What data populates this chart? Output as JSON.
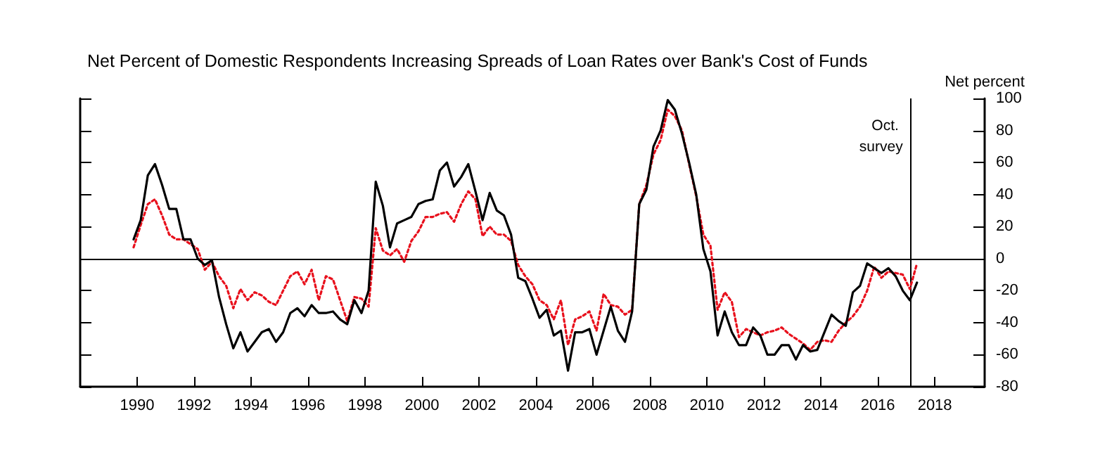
{
  "chart_data": {
    "type": "line",
    "title": "Net Percent of Domestic Respondents Increasing Spreads of Loan Rates over Bank's Cost of Funds",
    "ylabel": "Net percent",
    "x": [
      1990.375,
      1990.625,
      1990.875,
      1991.125,
      1991.375,
      1991.625,
      1991.875,
      1992.125,
      1992.375,
      1992.625,
      1992.875,
      1993.125,
      1993.375,
      1993.625,
      1993.875,
      1994.125,
      1994.375,
      1994.625,
      1994.875,
      1995.125,
      1995.375,
      1995.625,
      1995.875,
      1996.125,
      1996.375,
      1996.625,
      1996.875,
      1997.125,
      1997.375,
      1997.625,
      1997.875,
      1998.125,
      1998.375,
      1998.625,
      1998.875,
      1999.125,
      1999.375,
      1999.625,
      1999.875,
      2000.125,
      2000.375,
      2000.625,
      2000.875,
      2001.125,
      2001.375,
      2001.625,
      2001.875,
      2002.125,
      2002.375,
      2002.625,
      2002.875,
      2003.125,
      2003.375,
      2003.625,
      2003.875,
      2004.125,
      2004.375,
      2004.625,
      2004.875,
      2005.125,
      2005.375,
      2005.625,
      2005.875,
      2006.125,
      2006.375,
      2006.625,
      2006.875,
      2007.125,
      2007.375,
      2007.625,
      2007.875,
      2008.125,
      2008.375,
      2008.625,
      2008.875,
      2009.125,
      2009.375,
      2009.625,
      2009.875,
      2010.125,
      2010.375,
      2010.625,
      2010.875,
      2011.125,
      2011.375,
      2011.625,
      2011.875,
      2012.125,
      2012.375,
      2012.625,
      2012.875,
      2013.125,
      2013.375,
      2013.625,
      2013.875,
      2014.125,
      2014.375,
      2014.625,
      2014.875,
      2015.125,
      2015.375,
      2015.625,
      2015.875,
      2016.125,
      2016.375,
      2016.625,
      2016.875,
      2017.125,
      2017.375,
      2017.625,
      2017.875
    ],
    "series": [
      {
        "color": "#000000",
        "line_style": "solid",
        "values": [
          12,
          24,
          52,
          59,
          46,
          31,
          31,
          12,
          12,
          0,
          -4,
          -1,
          -24,
          -41,
          -56,
          -46,
          -58,
          -52,
          -46,
          -44,
          -52,
          -46,
          -34,
          -31,
          -36,
          -29,
          -34,
          -34,
          -33,
          -38,
          -41,
          -26,
          -34,
          -20,
          48,
          33,
          7,
          22,
          24,
          26,
          34,
          36,
          37,
          55,
          60,
          45,
          51,
          59,
          42,
          24,
          41,
          30,
          27,
          15,
          -12,
          -14,
          -25,
          -37,
          -32,
          -48,
          -45,
          -70,
          -46,
          -46,
          -44,
          -60,
          -45,
          -30,
          -45,
          -52,
          -33,
          34,
          43,
          70,
          80,
          99,
          93,
          78,
          60,
          40,
          6,
          -8,
          -48,
          -33,
          -46,
          -54,
          -54,
          -43,
          -48,
          -60,
          -60,
          -54,
          -54,
          -63,
          -54,
          -58,
          -57,
          -46,
          -35,
          -39,
          -42,
          -21,
          -17,
          -3,
          -6,
          -9,
          -6,
          -11,
          -20,
          -26,
          -15
        ]
      },
      {
        "color": "#e8101c",
        "line_style": "dotted",
        "values": [
          7,
          21,
          34,
          37,
          27,
          15,
          12,
          12,
          9,
          6,
          -7,
          -2,
          -11,
          -17,
          -31,
          -19,
          -26,
          -21,
          -23,
          -27,
          -29,
          -20,
          -11,
          -8,
          -16,
          -7,
          -26,
          -11,
          -13,
          -26,
          -39,
          -24,
          -25,
          -30,
          19,
          5,
          2,
          6,
          -2,
          11,
          17,
          26,
          26,
          28,
          29,
          23,
          34,
          42,
          37,
          14,
          20,
          15,
          15,
          11,
          -4,
          -11,
          -16,
          -26,
          -29,
          -38,
          -26,
          -54,
          -38,
          -36,
          -33,
          -45,
          -22,
          -29,
          -30,
          -35,
          -32,
          34,
          46,
          65,
          74,
          93,
          89,
          80,
          59,
          39,
          15,
          8,
          -32,
          -21,
          -27,
          -49,
          -44,
          -46,
          -48,
          -46,
          -45,
          -43,
          -47,
          -50,
          -53,
          -57,
          -52,
          -51,
          -52,
          -45,
          -40,
          -36,
          -30,
          -20,
          -5,
          -12,
          -8,
          -9,
          -10,
          -19,
          -3
        ]
      }
    ],
    "xlim": [
      1988.5,
      2020.25
    ],
    "xticks": [
      {
        "value": 1990.5,
        "label": "1990"
      },
      {
        "value": 1992.5,
        "label": "1992"
      },
      {
        "value": 1994.5,
        "label": "1994"
      },
      {
        "value": 1996.5,
        "label": "1996"
      },
      {
        "value": 1998.5,
        "label": "1998"
      },
      {
        "value": 2000.5,
        "label": "2000"
      },
      {
        "value": 2002.5,
        "label": "2002"
      },
      {
        "value": 2004.5,
        "label": "2004"
      },
      {
        "value": 2006.5,
        "label": "2006"
      },
      {
        "value": 2008.5,
        "label": "2008"
      },
      {
        "value": 2010.5,
        "label": "2010"
      },
      {
        "value": 2012.5,
        "label": "2012"
      },
      {
        "value": 2014.5,
        "label": "2014"
      },
      {
        "value": 2016.5,
        "label": "2016"
      },
      {
        "value": 2018.5,
        "label": "2018"
      }
    ],
    "ylim": [
      -80,
      100
    ],
    "yticks": [
      -80,
      -60,
      -40,
      -20,
      0,
      20,
      40,
      60,
      80,
      100
    ],
    "ref_lines": [
      {
        "axis": "y",
        "value": 0,
        "label": null,
        "color": "#000000"
      },
      {
        "axis": "x",
        "value": 2017.625,
        "label": "Oct. survey",
        "color": "#000000"
      }
    ],
    "grid": false,
    "marker": "none"
  }
}
